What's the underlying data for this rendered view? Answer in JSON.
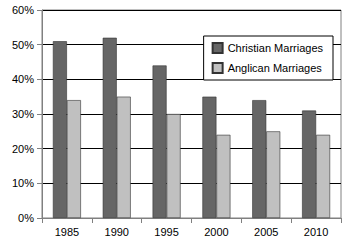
{
  "chart_data": {
    "type": "bar",
    "categories": [
      "1985",
      "1990",
      "1995",
      "2000",
      "2005",
      "2010"
    ],
    "series": [
      {
        "name": "Christian Marriages",
        "color": "#666666",
        "values": [
          51,
          52,
          44,
          35,
          34,
          31
        ]
      },
      {
        "name": "Anglican Marriages",
        "color": "#c0c0c0",
        "values": [
          34,
          35,
          30,
          24,
          25,
          24
        ]
      }
    ],
    "ylim": [
      0,
      60
    ],
    "yticks": [
      {
        "value": 0,
        "label": "0%"
      },
      {
        "value": 10,
        "label": "10%"
      },
      {
        "value": 20,
        "label": "20%"
      },
      {
        "value": 30,
        "label": "30%"
      },
      {
        "value": 40,
        "label": "40%"
      },
      {
        "value": 50,
        "label": "50%"
      },
      {
        "value": 60,
        "label": "60%"
      }
    ],
    "grid": true,
    "legend": "upper right"
  }
}
